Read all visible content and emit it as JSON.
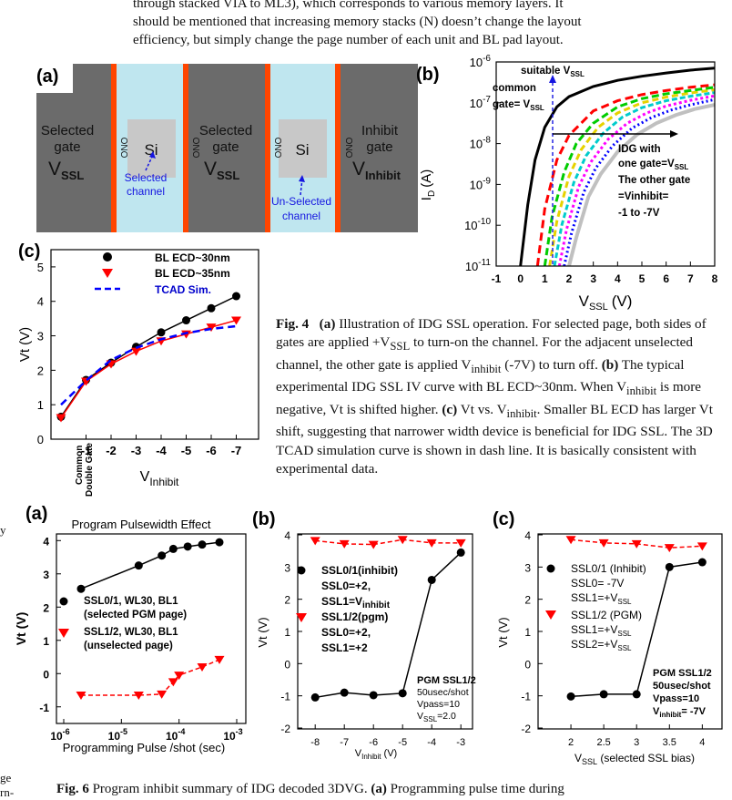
{
  "top_text": {
    "lines": [
      "through stacked VIA to ML3), which corresponds to various memory layers. It",
      "should be mentioned that increasing memory stacks (N) doesn’t change the layout",
      "efficiency, but simply change the page number of each unit and BL pad layout."
    ]
  },
  "left_fragments": {
    "f1": "y",
    "f2": "ge",
    "f3": "rn-"
  },
  "fig4a": {
    "label": "(a)",
    "selected_gate_1": [
      "Selected",
      "gate"
    ],
    "v_ssl_main": "V",
    "v_ssl_sub": "SSL",
    "ono": "ONO",
    "si": "Si",
    "selected_gate_2": [
      "Selected",
      "gate"
    ],
    "inhibit_gate": [
      "Inhibit",
      "gate"
    ],
    "v_inhibit_main": "V",
    "v_inhibit_sub": "Inhibit",
    "selected_channel": [
      "Selected",
      "channel"
    ],
    "unselected_channel": [
      "Un-Selected",
      "channel"
    ],
    "colors": {
      "gate": "#6b6b6b",
      "channel": "#bfe6ef",
      "ono": "#ff4500",
      "si": "#c8c8c8",
      "arrow": "#1515e0"
    }
  },
  "fig4b": {
    "label": "(b)",
    "annotation_suitable": "suitable V",
    "annotation_suitable_sub": "SSL",
    "annotation_common": [
      "common",
      "gate= V"
    ],
    "annotation_common_sub": "SSL",
    "annotation_idg": [
      "IDG with",
      "one gate=V"
    ],
    "annotation_idg_sub": "SSL",
    "annotation_other": [
      "The other gate",
      "=Vinhibit=",
      "-1 to -7V"
    ],
    "y_tick_labels": [
      "10-6",
      "10-7",
      "10-8",
      "10-9",
      "10-10",
      "10-11"
    ],
    "y_tick_base": "10",
    "y_tick_exps": [
      "-6",
      "-7",
      "-8",
      "-9",
      "-10",
      "-11"
    ],
    "ylabel_main": "I",
    "ylabel_sub": "D",
    "ylabel_unit": "(A)",
    "xlabel_main": "V",
    "xlabel_sub": "SSL",
    "xlabel_unit": "(V)",
    "x_ticks": [
      "-1",
      "0",
      "1",
      "2",
      "3",
      "4",
      "5",
      "6",
      "7",
      "8"
    ]
  },
  "fig4c": {
    "label": "(c)",
    "ylabel": "Vt (V)",
    "y_ticks": [
      "0",
      "1",
      "2",
      "3",
      "4",
      "5"
    ],
    "x_first_tick": [
      "Common",
      "Double Gate"
    ],
    "x_ticks": [
      "-1",
      "-2",
      "-3",
      "-4",
      "-5",
      "-6",
      "-7"
    ],
    "xlabel_main": "V",
    "xlabel_sub": "Inhibit",
    "legend": [
      "BL ECD~30nm",
      "BL ECD~35nm",
      "TCAD Sim."
    ]
  },
  "fig4_caption": {
    "title": "Fig. 4",
    "html_parts": {
      "a": "(a)",
      "t1": " Illustration of IDG SSL operation. For selected page, both sides of gates are applied +V",
      "s1": "SSL",
      "t2": " to turn-on the channel. For the adjacent unselected channel, the other gate is applied V",
      "s2": "inhibit",
      "t3": " (-7V) to turn off. ",
      "b": "(b)",
      "t4": " The typical experimental IDG SSL IV curve with BL ECD~30nm. When V",
      "s3": "inhibit",
      "t5": " is more negative, Vt is shifted higher. ",
      "c": "(c)",
      "t6": " Vt vs. V",
      "s4": "inhibit",
      "t7": ". Smaller BL ECD has larger Vt shift, suggesting that narrower width device is beneficial for IDG SSL. The 3D TCAD simulation curve is shown in dash line. It is basically consistent with experimental data."
    }
  },
  "fig6a": {
    "label": "(a)",
    "title": "Program Pulsewidth Effect",
    "ylabel": "Vt (V)",
    "y_ticks": [
      "4",
      "3",
      "2",
      "1",
      "0",
      "-1"
    ],
    "x_tick_base": "10",
    "x_tick_exps": [
      "-6",
      "-5",
      "-4",
      "-3"
    ],
    "xlabel": "Programming Pulse /shot (sec)",
    "legend1": [
      "SSL0/1, WL30, BL1",
      "(selected PGM page)"
    ],
    "legend2": [
      "SSL1/2, WL30, BL1",
      "(unselected page)"
    ]
  },
  "fig6b": {
    "label": "(b)",
    "ylabel": "Vt (V)",
    "y_ticks": [
      "4",
      "3",
      "2",
      "1",
      "0",
      "-1",
      "-2"
    ],
    "x_ticks": [
      "-8",
      "-7",
      "-6",
      "-5",
      "-4",
      "-3"
    ],
    "xlabel_main": "V",
    "xlabel_sub": "Inhibit",
    "xlabel_unit": " (V)",
    "legend1": [
      "SSL0/1(inhibit)",
      "SSL0=+2,",
      "SSL1=V"
    ],
    "legend1_sub": "inhibit",
    "legend2": [
      "SSL1/2(pgm)",
      "SSL0=+2,",
      "SSL1=+2"
    ],
    "note_title": "PGM SSL1/2",
    "note_lines": [
      "50usec/shot",
      "Vpass=10",
      "V"
    ],
    "note_sub": "SSL",
    "note_tail": "=2.0"
  },
  "fig6c": {
    "label": "(c)",
    "ylabel": "Vt (V)",
    "y_ticks": [
      "4",
      "3",
      "2",
      "1",
      "0",
      "-1",
      "-2"
    ],
    "x_ticks": [
      "2",
      "2.5",
      "3",
      "3.5",
      "4"
    ],
    "xlabel_main": "V",
    "xlabel_sub": "SSL",
    "xlabel_unit": " (selected SSL bias)",
    "legend1": [
      "SSL0/1 (Inhibit)",
      "SSL0= -7V",
      "SSL1=+V"
    ],
    "legend1_sub": "SSL",
    "legend2": [
      "SSL1/2 (PGM)",
      "SSL1=+V",
      "SSL2=+V"
    ],
    "legend2_sub": "SSL",
    "note_title": "PGM SSL1/2",
    "note_lines": [
      "50usec/shot",
      "Vpass=10",
      "V"
    ],
    "note_sub": "inhibit",
    "note_tail": "= -7V"
  },
  "fig6_caption": {
    "text_a": "Fig. 6",
    "text_b": "  Program inhibit summary of IDG decoded 3DVG. ",
    "text_c": "(a)",
    "text_d": " Programming pulse time during"
  },
  "chart_data": [
    {
      "id": "fig4b",
      "type": "line",
      "title": "",
      "xlabel": "VSSL (V)",
      "ylabel": "ID (A)",
      "xlim": [
        -1,
        8
      ],
      "ylim_log10": [
        -11,
        -6
      ],
      "yscale": "log",
      "series": [
        {
          "name": "common gate= VSSL",
          "color": "#000000",
          "dash": "",
          "x": [
            0.0,
            0.3,
            0.6,
            1.0,
            1.5,
            2.0,
            3.0,
            4.0,
            5.0,
            6.0,
            7.0,
            8.0
          ],
          "log10_y": [
            -11.0,
            -9.5,
            -8.4,
            -7.6,
            -7.1,
            -6.85,
            -6.6,
            -6.45,
            -6.35,
            -6.27,
            -6.2,
            -6.15
          ]
        },
        {
          "name": "Vinhibit=-1V",
          "color": "#ff0000",
          "dash": "9 5",
          "x": [
            0.7,
            1.0,
            1.5,
            2.0,
            3.0,
            4.0,
            5.0,
            6.0,
            7.0,
            8.0
          ],
          "log10_y": [
            -11.0,
            -9.6,
            -8.4,
            -7.8,
            -7.2,
            -6.95,
            -6.8,
            -6.7,
            -6.62,
            -6.56
          ]
        },
        {
          "name": "Vinhibit=-2V",
          "color": "#00cc00",
          "dash": "8 4",
          "x": [
            1.0,
            1.3,
            1.8,
            2.3,
            3.0,
            4.0,
            5.0,
            6.0,
            7.0,
            8.0
          ],
          "log10_y": [
            -11.0,
            -9.8,
            -8.7,
            -8.0,
            -7.5,
            -7.1,
            -6.9,
            -6.78,
            -6.7,
            -6.62
          ]
        },
        {
          "name": "Vinhibit=-3V",
          "color": "#e6d200",
          "dash": "7 4",
          "x": [
            1.2,
            1.5,
            2.0,
            2.5,
            3.2,
            4.0,
            5.0,
            6.0,
            7.0,
            8.0
          ],
          "log10_y": [
            -11.0,
            -9.9,
            -8.8,
            -8.15,
            -7.6,
            -7.25,
            -7.0,
            -6.86,
            -6.76,
            -6.68
          ]
        },
        {
          "name": "Vinhibit=-4V",
          "color": "#00cccc",
          "dash": "6 3",
          "x": [
            1.4,
            1.7,
            2.2,
            2.7,
            3.4,
            4.2,
            5.0,
            6.0,
            7.0,
            8.0
          ],
          "log10_y": [
            -11.0,
            -10.0,
            -8.95,
            -8.3,
            -7.75,
            -7.35,
            -7.12,
            -6.95,
            -6.84,
            -6.75
          ]
        },
        {
          "name": "Vinhibit=-5V",
          "color": "#ff00ff",
          "dash": "3 3",
          "x": [
            1.6,
            1.9,
            2.4,
            2.9,
            3.6,
            4.4,
            5.2,
            6.0,
            7.0,
            8.0
          ],
          "log10_y": [
            -11.0,
            -10.1,
            -9.05,
            -8.45,
            -7.9,
            -7.5,
            -7.25,
            -7.08,
            -6.94,
            -6.83
          ]
        },
        {
          "name": "Vinhibit=-6V",
          "color": "#0000ff",
          "dash": "2 3",
          "x": [
            1.8,
            2.1,
            2.6,
            3.1,
            3.8,
            4.6,
            5.4,
            6.2,
            7.0,
            8.0
          ],
          "log10_y": [
            -11.0,
            -10.2,
            -9.2,
            -8.6,
            -8.05,
            -7.62,
            -7.36,
            -7.18,
            -7.05,
            -6.92
          ]
        },
        {
          "name": "Vinhibit=-7V",
          "color": "#c0c0c0",
          "dash": "",
          "x": [
            2.0,
            2.3,
            2.8,
            3.3,
            4.0,
            4.8,
            5.6,
            6.4,
            7.2,
            8.0
          ],
          "log10_y": [
            -11.0,
            -10.3,
            -9.3,
            -8.75,
            -8.2,
            -7.78,
            -7.5,
            -7.3,
            -7.15,
            -7.05
          ]
        }
      ]
    },
    {
      "id": "fig4c",
      "type": "line",
      "xlabel": "VInhibit",
      "ylabel": "Vt (V)",
      "categories": [
        "Common Double Gate",
        "-1",
        "-2",
        "-3",
        "-4",
        "-5",
        "-6",
        "-7"
      ],
      "ylim": [
        0,
        5.5
      ],
      "series": [
        {
          "name": "BL ECD~30nm",
          "color": "#000000",
          "marker": "circle",
          "values": [
            0.65,
            1.72,
            2.22,
            2.68,
            3.1,
            3.45,
            3.8,
            4.15
          ]
        },
        {
          "name": "BL ECD~35nm",
          "color": "#ff0000",
          "marker": "triangle-down",
          "values": [
            0.62,
            1.68,
            2.18,
            2.55,
            2.85,
            3.05,
            3.25,
            3.45
          ]
        },
        {
          "name": "TCAD Sim.",
          "color": "#0000ff",
          "dash": true,
          "values": [
            1.0,
            1.7,
            2.3,
            2.65,
            2.9,
            3.08,
            3.2,
            3.28
          ]
        }
      ]
    },
    {
      "id": "fig6a",
      "type": "line",
      "title": "Program Pulsewidth Effect",
      "xlabel": "Programming Pulse /shot (sec)",
      "ylabel": "Vt (V)",
      "xscale": "log",
      "xlim_log10": [
        -6,
        -3
      ],
      "ylim": [
        -1.5,
        4.2
      ],
      "series": [
        {
          "name": "SSL0/1, WL30, BL1 (selected PGM page)",
          "color": "#000000",
          "marker": "circle",
          "log10_x": [
            -5.7,
            -4.7,
            -4.3,
            -4.1,
            -3.85,
            -3.6,
            -3.3
          ],
          "values": [
            2.55,
            3.25,
            3.55,
            3.75,
            3.82,
            3.88,
            3.95
          ]
        },
        {
          "name": "SSL1/2, WL30, BL1 (unselected page)",
          "color": "#ff0000",
          "marker": "triangle-down",
          "dash": true,
          "log10_x": [
            -5.7,
            -4.7,
            -4.3,
            -4.1,
            -4.0,
            -3.6,
            -3.3
          ],
          "values": [
            -0.65,
            -0.65,
            -0.62,
            -0.25,
            -0.05,
            0.2,
            0.42
          ]
        }
      ]
    },
    {
      "id": "fig6b",
      "type": "line",
      "xlabel": "VInhibit (V)",
      "ylabel": "Vt (V)",
      "xlim": [
        -8.6,
        -2.6
      ],
      "ylim": [
        -2,
        4
      ],
      "series": [
        {
          "name": "SSL0/1(inhibit)",
          "color": "#000000",
          "marker": "circle",
          "x": [
            -8,
            -7,
            -6,
            -5,
            -4,
            -3
          ],
          "values": [
            -1.05,
            -0.9,
            -0.98,
            -0.92,
            2.6,
            3.45
          ]
        },
        {
          "name": "SSL1/2(pgm)",
          "color": "#ff0000",
          "marker": "triangle-down",
          "dash": true,
          "x": [
            -8,
            -7,
            -6,
            -5,
            -4,
            -3
          ],
          "values": [
            3.82,
            3.72,
            3.7,
            3.85,
            3.75,
            3.75
          ]
        }
      ]
    },
    {
      "id": "fig6c",
      "type": "line",
      "xlabel": "VSSL (selected SSL bias)",
      "ylabel": "Vt (V)",
      "xlim": [
        1.5,
        4.3
      ],
      "ylim": [
        -2,
        4
      ],
      "series": [
        {
          "name": "SSL0/1 (Inhibit)",
          "color": "#000000",
          "marker": "circle",
          "x": [
            2.0,
            2.5,
            3.0,
            3.5,
            4.0
          ],
          "values": [
            -1.02,
            -0.95,
            -0.95,
            3.0,
            3.15
          ]
        },
        {
          "name": "SSL1/2 (PGM)",
          "color": "#ff0000",
          "marker": "triangle-down",
          "dash": true,
          "x": [
            2.0,
            2.5,
            3.0,
            3.5,
            4.0
          ],
          "values": [
            3.85,
            3.75,
            3.72,
            3.6,
            3.65
          ]
        }
      ]
    }
  ]
}
